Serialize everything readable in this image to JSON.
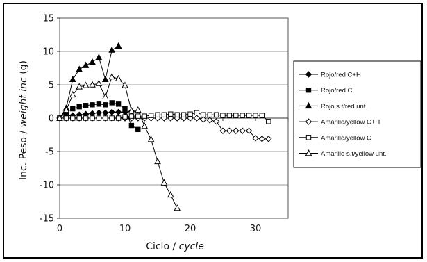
{
  "chart_data": {
    "type": "line",
    "xlabel": {
      "plain": "Ciclo / ",
      "italic": "cycle"
    },
    "ylabel": {
      "plain": "Inc. Peso / ",
      "italic": "weight inc",
      "suffix": " (g)"
    },
    "xlim": [
      0,
      35
    ],
    "ylim": [
      -15,
      15
    ],
    "xticks": [
      0,
      10,
      20,
      30
    ],
    "yticks": [
      15,
      10,
      5,
      0,
      -5,
      -10,
      -15
    ],
    "grid": "horizontal",
    "legend_position": "right",
    "series": [
      {
        "name": "Rojo/red C+H",
        "marker": "filled-diamond",
        "color": "#000000",
        "x": [
          0,
          1,
          2,
          3,
          4,
          5,
          6,
          7,
          8,
          9,
          10,
          11
        ],
        "y": [
          0,
          0.3,
          0.4,
          0.5,
          0.6,
          0.7,
          0.8,
          0.8,
          0.9,
          0.9,
          0.9,
          1.0
        ]
      },
      {
        "name": "Rojo/red C",
        "marker": "filled-square",
        "color": "#000000",
        "x": [
          0,
          1,
          2,
          3,
          4,
          5,
          6,
          7,
          8,
          9,
          10,
          11,
          12
        ],
        "y": [
          0,
          0.9,
          1.4,
          1.7,
          1.9,
          2.0,
          2.1,
          2.0,
          2.3,
          2.1,
          1.4,
          -1.1,
          -1.7
        ]
      },
      {
        "name": "Rojo s.t/red unt.",
        "marker": "filled-triangle",
        "color": "#000000",
        "x": [
          0,
          1,
          2,
          3,
          4,
          5,
          6,
          7,
          8,
          9
        ],
        "y": [
          0,
          1.5,
          5.8,
          7.3,
          7.9,
          8.4,
          9.1,
          5.8,
          10.2,
          10.8
        ]
      },
      {
        "name": "Amarillo/yellow C+H",
        "marker": "open-diamond",
        "color": "#000000",
        "x": [
          0,
          1,
          2,
          3,
          4,
          5,
          6,
          7,
          8,
          9,
          10,
          11,
          12,
          13,
          14,
          15,
          16,
          17,
          18,
          19,
          20,
          21,
          22,
          23,
          24,
          25,
          26,
          27,
          28,
          29,
          30,
          31,
          32
        ],
        "y": [
          0,
          0,
          0,
          0,
          0,
          0,
          0,
          0,
          0,
          0,
          0,
          0,
          0,
          0,
          0,
          0,
          0,
          0,
          0,
          0,
          0,
          0,
          -0.2,
          -0.3,
          -0.5,
          -1.9,
          -1.9,
          -1.9,
          -1.9,
          -1.9,
          -3.0,
          -3.1,
          -3.1
        ]
      },
      {
        "name": "Amarillo/yellow C",
        "marker": "open-square",
        "color": "#000000",
        "x": [
          0,
          1,
          2,
          3,
          4,
          5,
          6,
          7,
          8,
          9,
          10,
          11,
          12,
          13,
          14,
          15,
          16,
          17,
          18,
          19,
          20,
          21,
          22,
          23,
          24,
          25,
          26,
          27,
          28,
          29,
          30,
          31,
          32
        ],
        "y": [
          0,
          0,
          0,
          0,
          0,
          0,
          0,
          0,
          0,
          0,
          0.2,
          0.3,
          0.3,
          0.3,
          0.4,
          0.5,
          0.5,
          0.6,
          0.5,
          0.5,
          0.6,
          0.8,
          0.5,
          0.5,
          0.5,
          0.4,
          0.4,
          0.4,
          0.4,
          0.4,
          0.4,
          0.4,
          -0.5
        ]
      },
      {
        "name": "Amarillo s.t/yellow unt.",
        "marker": "open-triangle",
        "color": "#000000",
        "x": [
          0,
          1,
          2,
          3,
          4,
          5,
          6,
          7,
          8,
          9,
          10,
          11,
          12,
          13,
          14,
          15,
          16,
          17,
          18
        ],
        "y": [
          0,
          1.2,
          3.5,
          4.7,
          4.9,
          5.0,
          5.2,
          3.2,
          6.2,
          5.9,
          4.9,
          1.1,
          1.2,
          -1.2,
          -3.2,
          -6.5,
          -9.7,
          -11.5,
          -13.5
        ]
      }
    ]
  }
}
